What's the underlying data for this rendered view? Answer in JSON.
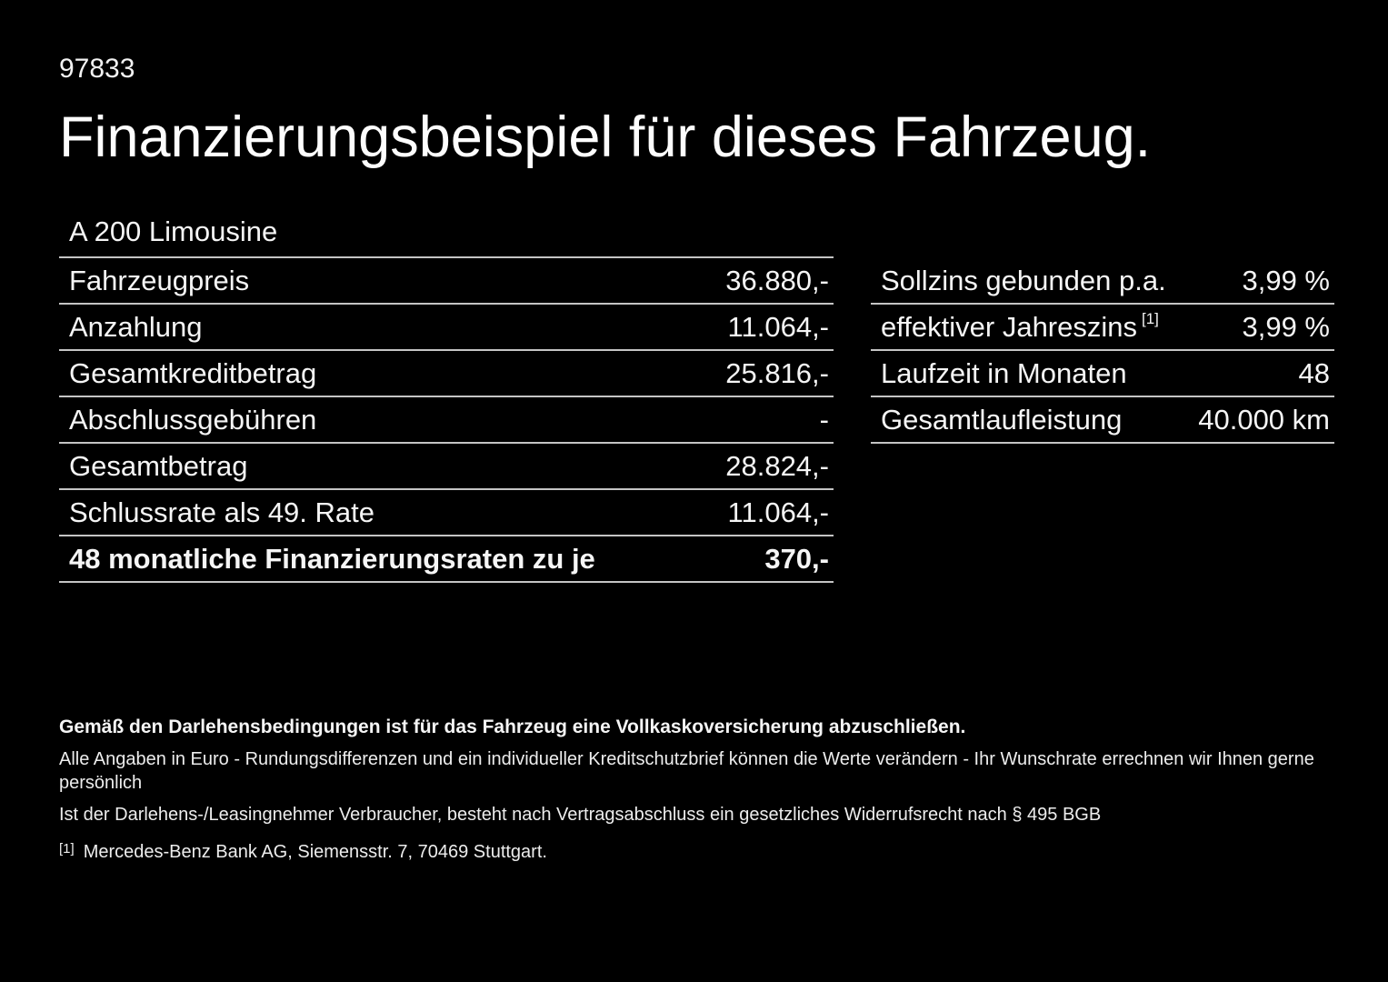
{
  "doc_number": "97833",
  "title": "Finanzierungsbeispiel für dieses Fahrzeug.",
  "vehicle_model": "A 200 Limousine",
  "left_table": {
    "rows": [
      {
        "label": "Fahrzeugpreis",
        "value": "36.880,-",
        "bold": false
      },
      {
        "label": "Anzahlung",
        "value": "11.064,-",
        "bold": false
      },
      {
        "label": "Gesamtkreditbetrag",
        "value": "25.816,-",
        "bold": false
      },
      {
        "label": "Abschlussgebühren",
        "value": "-",
        "bold": false
      },
      {
        "label": "Gesamtbetrag",
        "value": "28.824,-",
        "bold": false
      },
      {
        "label": "Schlussrate als 49. Rate",
        "value": "11.064,-",
        "bold": false
      },
      {
        "label": "48 monatliche Finanzierungsraten zu je",
        "value": "370,-",
        "bold": true
      }
    ]
  },
  "right_table": {
    "rows": [
      {
        "label": "Sollzins gebunden p.a.",
        "value": "3,99 %",
        "bold": false
      },
      {
        "label": "effektiver Jahreszins",
        "sup": "[1]",
        "value": "3,99 %",
        "bold": false
      },
      {
        "label": "Laufzeit in Monaten",
        "value": "48",
        "bold": false
      },
      {
        "label": "Gesamtlaufleistung",
        "value": "40.000 km",
        "bold": false
      }
    ]
  },
  "footer": {
    "bold_note": "Gemäß den Darlehensbedingungen ist für das Fahrzeug eine Vollkaskoversicherung abzuschließen.",
    "note_line1": "Alle Angaben in Euro - Rundungsdifferenzen und ein individueller Kreditschutzbrief können die Werte verändern - Ihr Wunschrate errechnen wir Ihnen gerne persönlich",
    "note_line2": "Ist der Darlehens-/Leasingnehmer Verbraucher, besteht nach Vertragsabschluss ein gesetzliches Widerrufsrecht nach § 495 BGB",
    "footnote_marker": "[1]",
    "footnote_text": "Mercedes-Benz Bank AG, Siemensstr. 7, 70469 Stuttgart."
  },
  "colors": {
    "background": "#000000",
    "text": "#f5f5f5",
    "divider": "#c4c4c4"
  }
}
